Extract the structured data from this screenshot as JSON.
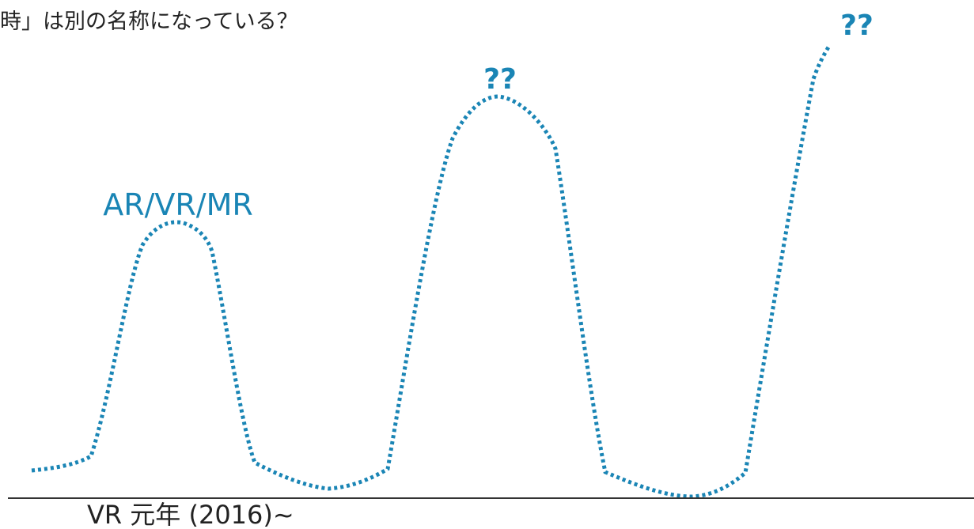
{
  "header": {
    "title": "時」は別の名称になっている？"
  },
  "peaks": [
    {
      "label": "AR/VR/MR"
    },
    {
      "label": "??"
    },
    {
      "label": "??"
    }
  ],
  "axis": {
    "label": "VR 元年 (2016)~"
  }
}
